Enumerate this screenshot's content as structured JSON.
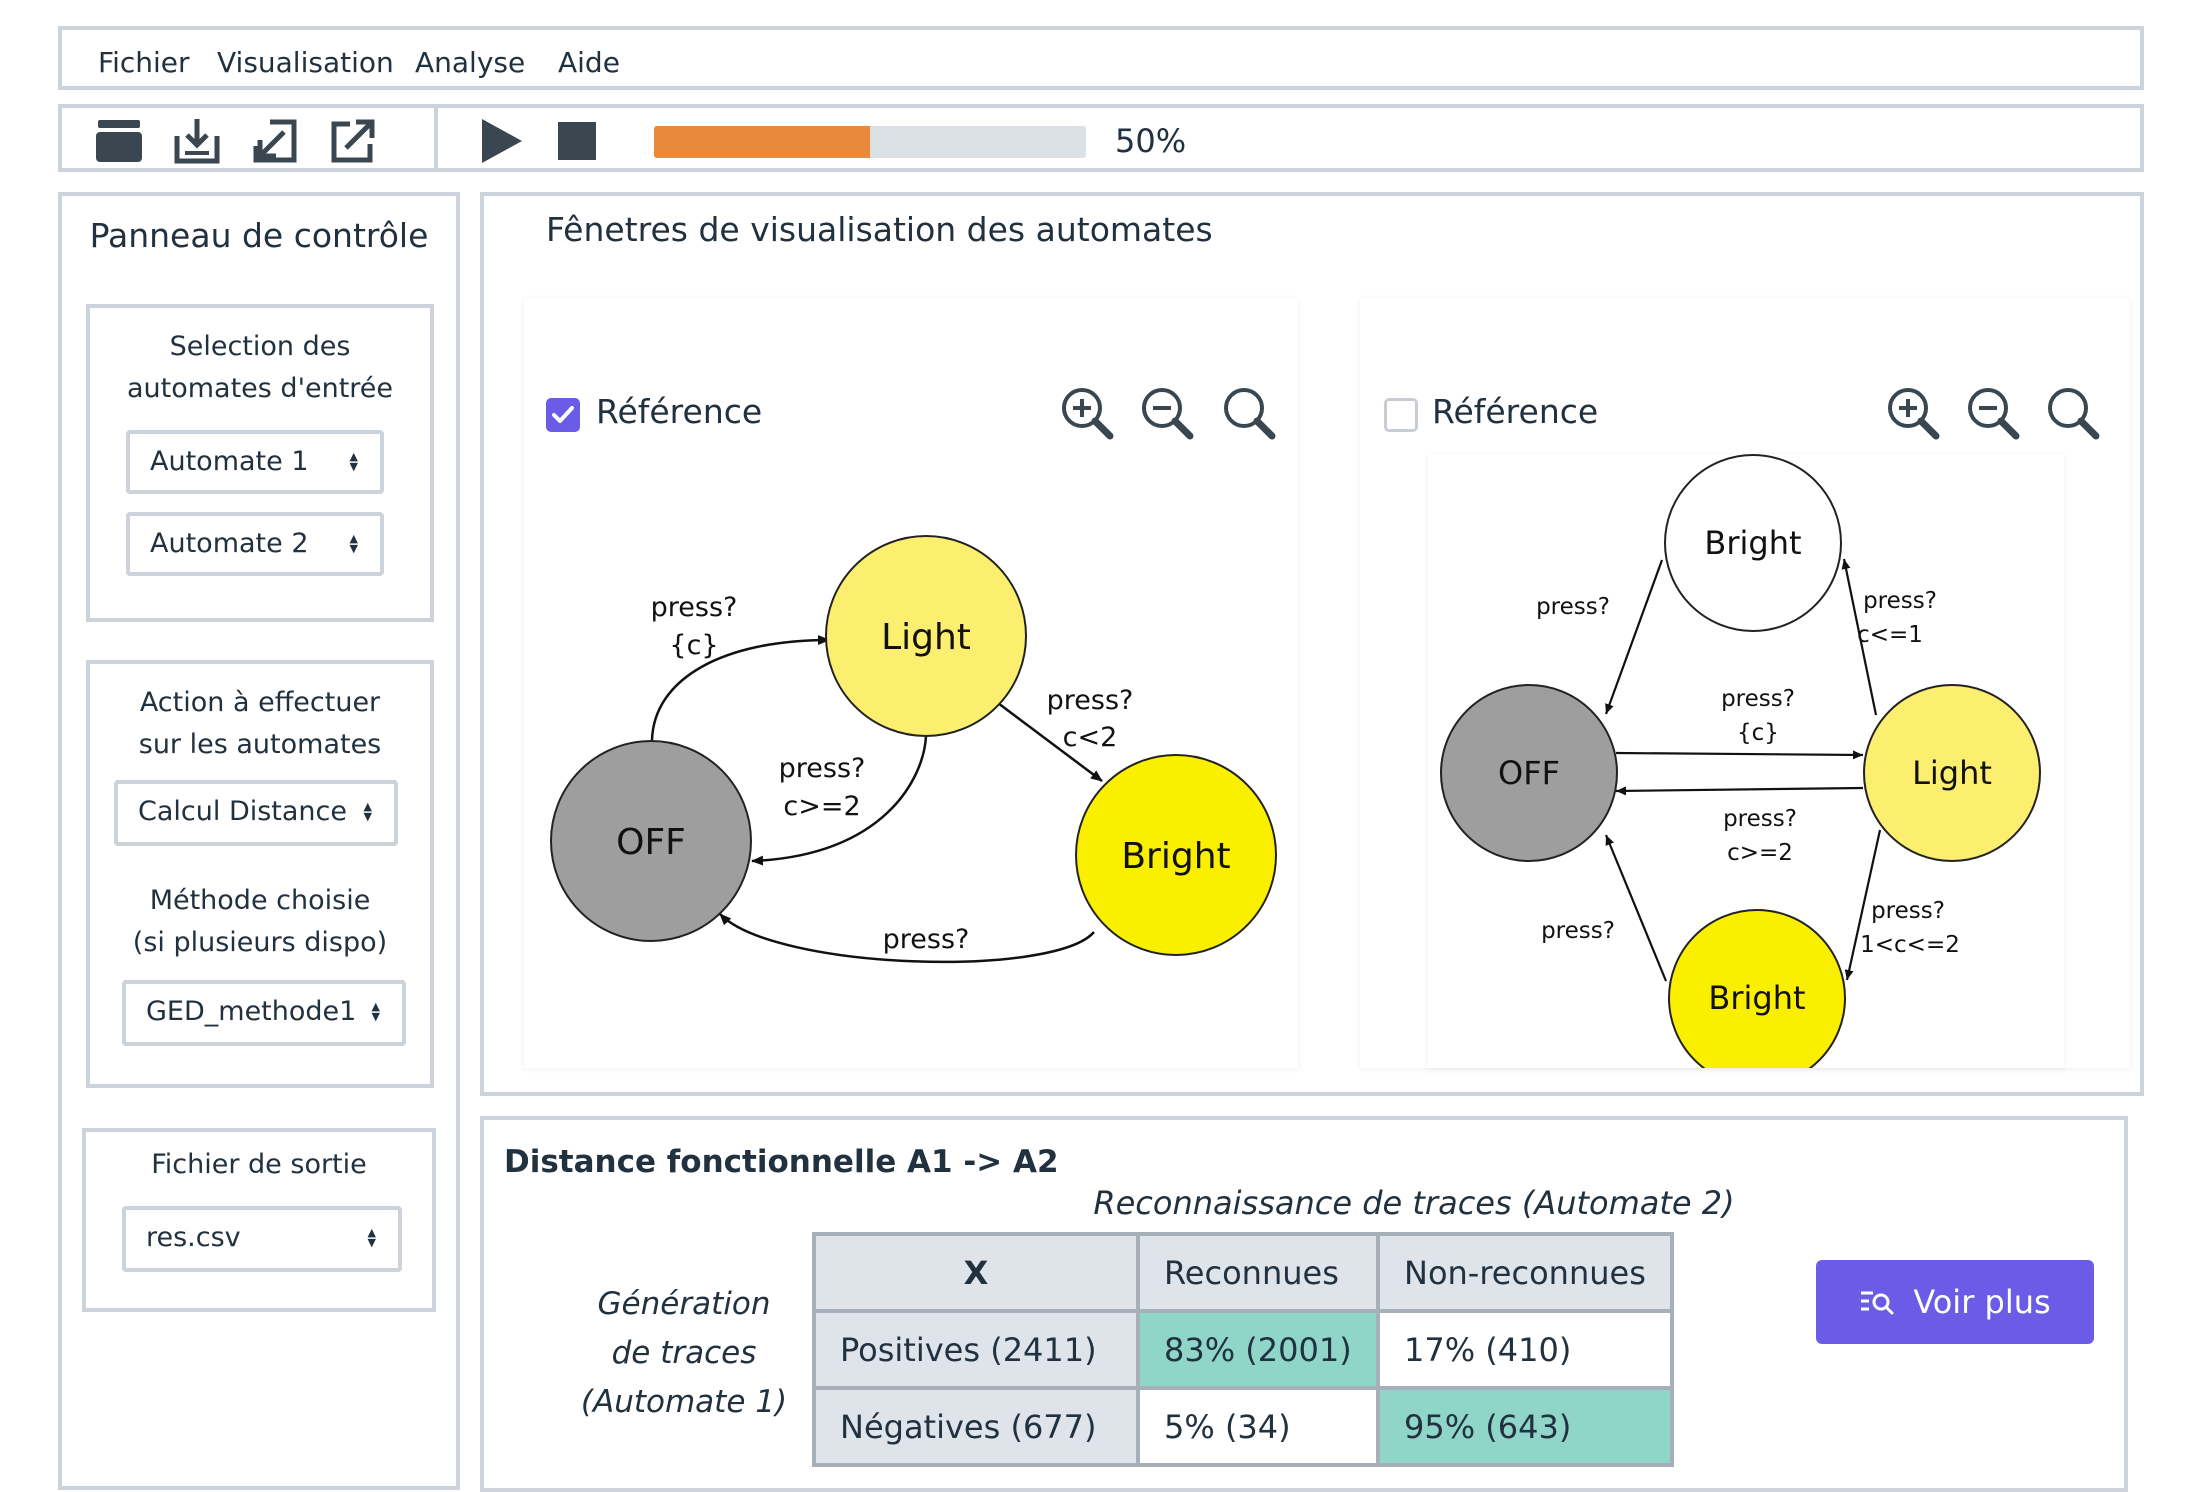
{
  "menu": [
    "Fichier",
    "Visualisation",
    "Analyse",
    "Aide"
  ],
  "toolbar": {
    "icons": [
      "folder-icon",
      "save-icon",
      "import-icon",
      "export-icon",
      "play-icon",
      "stop-icon"
    ],
    "progress": 0.5,
    "progress_label": "50%"
  },
  "sidebar": {
    "title": "Panneau de contrôle",
    "input_group": {
      "label_line1": "Selection des",
      "label_line2": "automates d'entrée",
      "select1": "Automate 1",
      "select2": "Automate 2"
    },
    "action_group": {
      "label_line1": "Action à effectuer",
      "label_line2": "sur les automates",
      "action_select": "Calcul Distance",
      "method_label_line1": "Méthode choisie",
      "method_label_line2": "(si plusieurs dispo)",
      "method_select": "GED_methode1"
    },
    "output_group": {
      "label": "Fichier de sortie",
      "file_select": "res.csv"
    }
  },
  "viz": {
    "title": "Fênetres de visualisation des automates",
    "left": {
      "reference_label": "Référence",
      "reference_checked": true,
      "states": {
        "off": "OFF",
        "light": "Light",
        "bright": "Bright"
      },
      "transitions": {
        "off_light_1": "press?",
        "off_light_2": "{c}",
        "light_off_1": "press?",
        "light_off_2": "c>=2",
        "light_bright_1": "press?",
        "light_bright_2": "c<2",
        "bright_off": "press?"
      }
    },
    "right": {
      "reference_label": "Référence",
      "reference_checked": false,
      "states": {
        "top": "Bright",
        "off": "OFF",
        "light": "Light",
        "bottom": "Bright"
      },
      "transitions": {
        "top_off": "press?",
        "light_top_1": "press?",
        "light_top_2": "c<=1",
        "off_light_1": "press?",
        "off_light_2": "{c}",
        "light_off_1": "press?",
        "light_off_2": "c>=2",
        "bottom_off": "press?",
        "light_bottom_1": "press?",
        "light_bottom_2": "1<c<=2"
      }
    },
    "colors": {
      "off": "#9e9e9e",
      "light": "#fcee6f",
      "bright": "#fbef00",
      "checkbox": "#6b5ce7"
    }
  },
  "result": {
    "title": "Distance fonctionnelle A1 -> A2",
    "subtitle": "Reconnaissance de traces (Automate 2)",
    "gen_label": [
      "Génération",
      "de traces",
      "(Automate 1)"
    ],
    "headers": [
      "X",
      "Reconnues",
      "Non-reconnues"
    ],
    "rows": [
      {
        "label": "Positives (2411)",
        "recognized": "83% (2001)",
        "not_recognized": "17% (410)"
      },
      {
        "label": "Négatives (677)",
        "recognized": "5% (34)",
        "not_recognized": "95% (643)"
      }
    ],
    "button_label": "Voir plus"
  }
}
